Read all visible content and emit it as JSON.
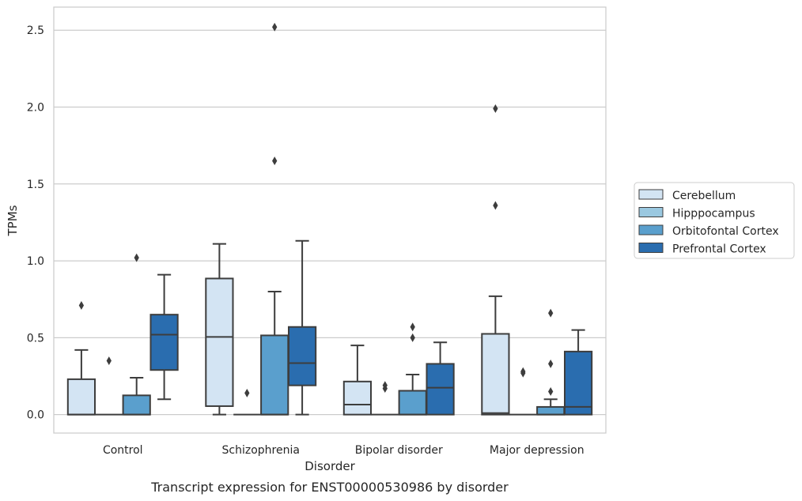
{
  "chart_data": {
    "type": "box",
    "title": "",
    "caption": "Transcript expression for ENST00000530986 by disorder",
    "xlabel": "Disorder",
    "ylabel": "TPMs",
    "ylim": [
      -0.12,
      2.65
    ],
    "yticks": [
      0.0,
      0.5,
      1.0,
      1.5,
      2.0,
      2.5
    ],
    "yticklabels": [
      "0.0",
      "0.5",
      "1.0",
      "1.5",
      "2.0",
      "2.5"
    ],
    "grid": "horizontal",
    "legend_position": "right",
    "categories": [
      "Control",
      "Schizophrenia",
      "Bipolar disorder",
      "Major depression"
    ],
    "series": [
      {
        "name": "Cerebellum",
        "color": "#d3e4f3",
        "boxes": [
          {
            "whislo": 0.0,
            "q1": 0.0,
            "med": 0.0,
            "q3": 0.23,
            "whishi": 0.42,
            "fliers": [
              0.71
            ]
          },
          {
            "whislo": 0.0,
            "q1": 0.055,
            "med": 0.505,
            "q3": 0.885,
            "whishi": 1.11,
            "fliers": []
          },
          {
            "whislo": 0.0,
            "q1": 0.0,
            "med": 0.065,
            "q3": 0.215,
            "whishi": 0.45,
            "fliers": []
          },
          {
            "whislo": 0.0,
            "q1": 0.0,
            "med": 0.01,
            "q3": 0.525,
            "whishi": 0.77,
            "fliers": [
              1.36,
              1.99
            ]
          }
        ]
      },
      {
        "name": "Hipppocampus",
        "color": "#9ac8e0",
        "boxes": [
          {
            "whislo": 0.0,
            "q1": 0.0,
            "med": 0.0,
            "q3": 0.0,
            "whishi": 0.0,
            "fliers": [
              0.35
            ]
          },
          {
            "whislo": 0.0,
            "q1": 0.0,
            "med": 0.0,
            "q3": 0.0,
            "whishi": 0.0,
            "fliers": [
              0.14
            ]
          },
          {
            "whislo": 0.0,
            "q1": 0.0,
            "med": 0.0,
            "q3": 0.0,
            "whishi": 0.0,
            "fliers": [
              0.17,
              0.19
            ]
          },
          {
            "whislo": 0.0,
            "q1": 0.0,
            "med": 0.0,
            "q3": 0.0,
            "whishi": 0.0,
            "fliers": [
              0.27,
              0.28
            ]
          }
        ]
      },
      {
        "name": "Orbitofontal Cortex",
        "color": "#5a9fcd",
        "boxes": [
          {
            "whislo": 0.0,
            "q1": 0.0,
            "med": 0.0,
            "q3": 0.125,
            "whishi": 0.24,
            "fliers": [
              1.02
            ]
          },
          {
            "whislo": 0.0,
            "q1": 0.0,
            "med": 0.0,
            "q3": 0.515,
            "whishi": 0.8,
            "fliers": [
              1.65,
              2.52
            ]
          },
          {
            "whislo": 0.0,
            "q1": 0.0,
            "med": 0.0,
            "q3": 0.155,
            "whishi": 0.26,
            "fliers": [
              0.5,
              0.57
            ]
          },
          {
            "whislo": 0.0,
            "q1": 0.0,
            "med": 0.0,
            "q3": 0.05,
            "whishi": 0.1,
            "fliers": [
              0.15,
              0.33,
              0.66
            ]
          }
        ]
      },
      {
        "name": "Prefrontal Cortex",
        "color": "#2a6daf",
        "boxes": [
          {
            "whislo": 0.1,
            "q1": 0.29,
            "med": 0.52,
            "q3": 0.65,
            "whishi": 0.91,
            "fliers": []
          },
          {
            "whislo": 0.0,
            "q1": 0.19,
            "med": 0.335,
            "q3": 0.57,
            "whishi": 1.13,
            "fliers": []
          },
          {
            "whislo": 0.0,
            "q1": 0.0,
            "med": 0.175,
            "q3": 0.33,
            "whishi": 0.47,
            "fliers": []
          },
          {
            "whislo": 0.0,
            "q1": 0.0,
            "med": 0.05,
            "q3": 0.41,
            "whishi": 0.55,
            "fliers": []
          }
        ]
      }
    ]
  }
}
